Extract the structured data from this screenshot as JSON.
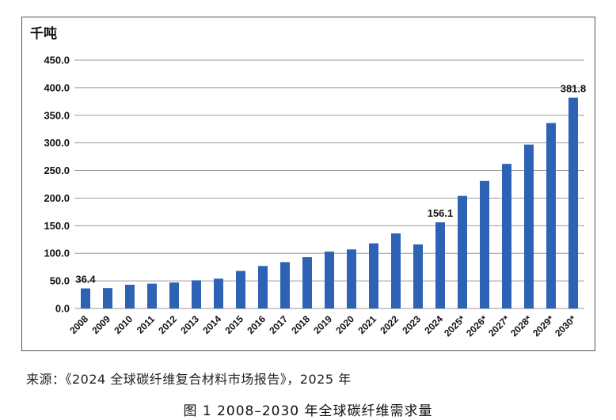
{
  "source_text": "来源：《2024 全球碳纤维复合材料市场报告》，2025 年",
  "caption_text": "图 1  2008–2030 年全球碳纤维需求量",
  "chart_data": {
    "type": "bar",
    "ylabel": "千吨",
    "ylim": [
      0,
      450
    ],
    "yticks": [
      "0.0",
      "50.0",
      "100.0",
      "150.0",
      "200.0",
      "250.0",
      "300.0",
      "350.0",
      "400.0",
      "450.0"
    ],
    "grid": true,
    "bar_color": "#2E62B5",
    "categories": [
      "2008",
      "2009",
      "2010",
      "2011",
      "2012",
      "2013",
      "2014",
      "2015",
      "2016",
      "2017",
      "2018",
      "2019",
      "2020",
      "2021",
      "2022",
      "2023",
      "2024",
      "2025*",
      "2026*",
      "2027*",
      "2028*",
      "2029*",
      "2030*"
    ],
    "values": [
      36.4,
      37,
      43,
      45,
      47,
      51,
      54,
      68,
      77,
      84,
      93,
      103,
      107,
      118,
      136,
      116,
      156.1,
      204,
      231,
      262,
      297,
      336,
      381.8
    ],
    "data_labels": [
      {
        "index": 0,
        "text": "36.4"
      },
      {
        "index": 16,
        "text": "156.1"
      },
      {
        "index": 22,
        "text": "381.8"
      }
    ]
  }
}
